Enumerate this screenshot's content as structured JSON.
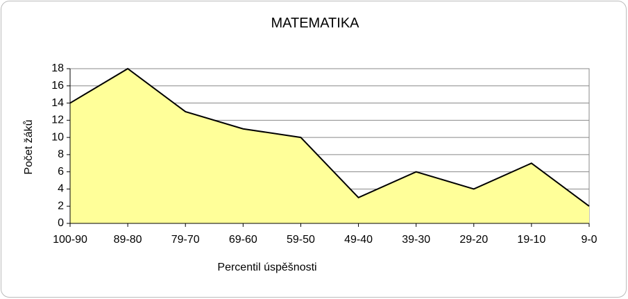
{
  "chart_data": {
    "type": "area",
    "title": "MATEMATIKA",
    "x_label": "Percentil úspěšnosti",
    "y_label": "Počet žáků",
    "categories": [
      "100-90",
      "89-80",
      "79-70",
      "69-60",
      "59-50",
      "49-40",
      "39-30",
      "29-20",
      "19-10",
      "9-0"
    ],
    "values": [
      14,
      18,
      13,
      11,
      10,
      3,
      6,
      4,
      7,
      2
    ],
    "color": "#ffff99",
    "line_color": "#000000",
    "ylim": [
      0,
      18
    ],
    "yticks": [
      0,
      2,
      4,
      6,
      8,
      10,
      12,
      14,
      16,
      18
    ],
    "grid": true
  }
}
